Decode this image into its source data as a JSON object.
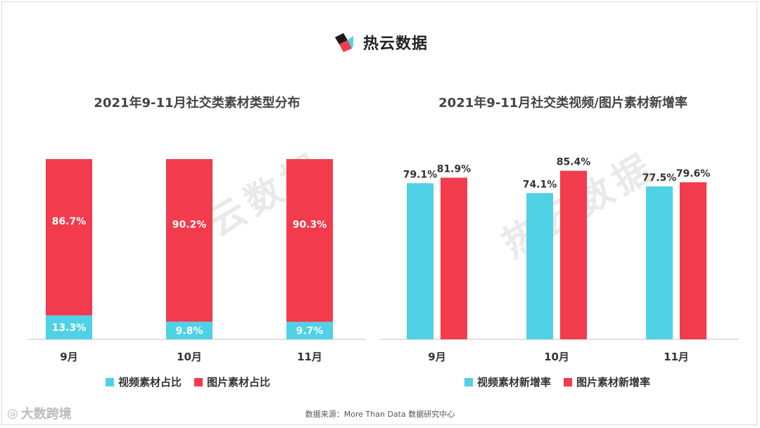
{
  "brand": {
    "name": "热云数据"
  },
  "colors": {
    "video": "#4fd1e6",
    "image": "#f23b4d",
    "axis": "#bfbfbf"
  },
  "chart_data": [
    {
      "type": "bar",
      "stacked": true,
      "title": "2021年9-11月社交类素材类型分布",
      "categories": [
        "9月",
        "10月",
        "11月"
      ],
      "series": [
        {
          "name": "视频素材占比",
          "values": [
            13.3,
            9.8,
            9.7
          ],
          "labels": [
            "13.3%",
            "9.8%",
            "9.7%"
          ]
        },
        {
          "name": "图片素材占比",
          "values": [
            86.7,
            90.2,
            90.3
          ],
          "labels": [
            "86.7%",
            "90.2%",
            "90.3%"
          ]
        }
      ],
      "ylim": [
        0,
        100
      ]
    },
    {
      "type": "bar",
      "stacked": false,
      "title": "2021年9-11月社交类视频/图片素材新增率",
      "categories": [
        "9月",
        "10月",
        "11月"
      ],
      "series": [
        {
          "name": "视频素材新增率",
          "values": [
            79.1,
            74.1,
            77.5
          ],
          "labels": [
            "79.1%",
            "74.1%",
            "77.5%"
          ]
        },
        {
          "name": "图片素材新增率",
          "values": [
            81.9,
            85.4,
            79.6
          ],
          "labels": [
            "81.9%",
            "85.4%",
            "79.6%"
          ]
        }
      ],
      "ylim": [
        0,
        100
      ]
    }
  ],
  "footer": {
    "source": "数据来源：More Than Data 数据研究中心",
    "corner_logo": "大数跨境"
  },
  "watermark": "热云数据"
}
